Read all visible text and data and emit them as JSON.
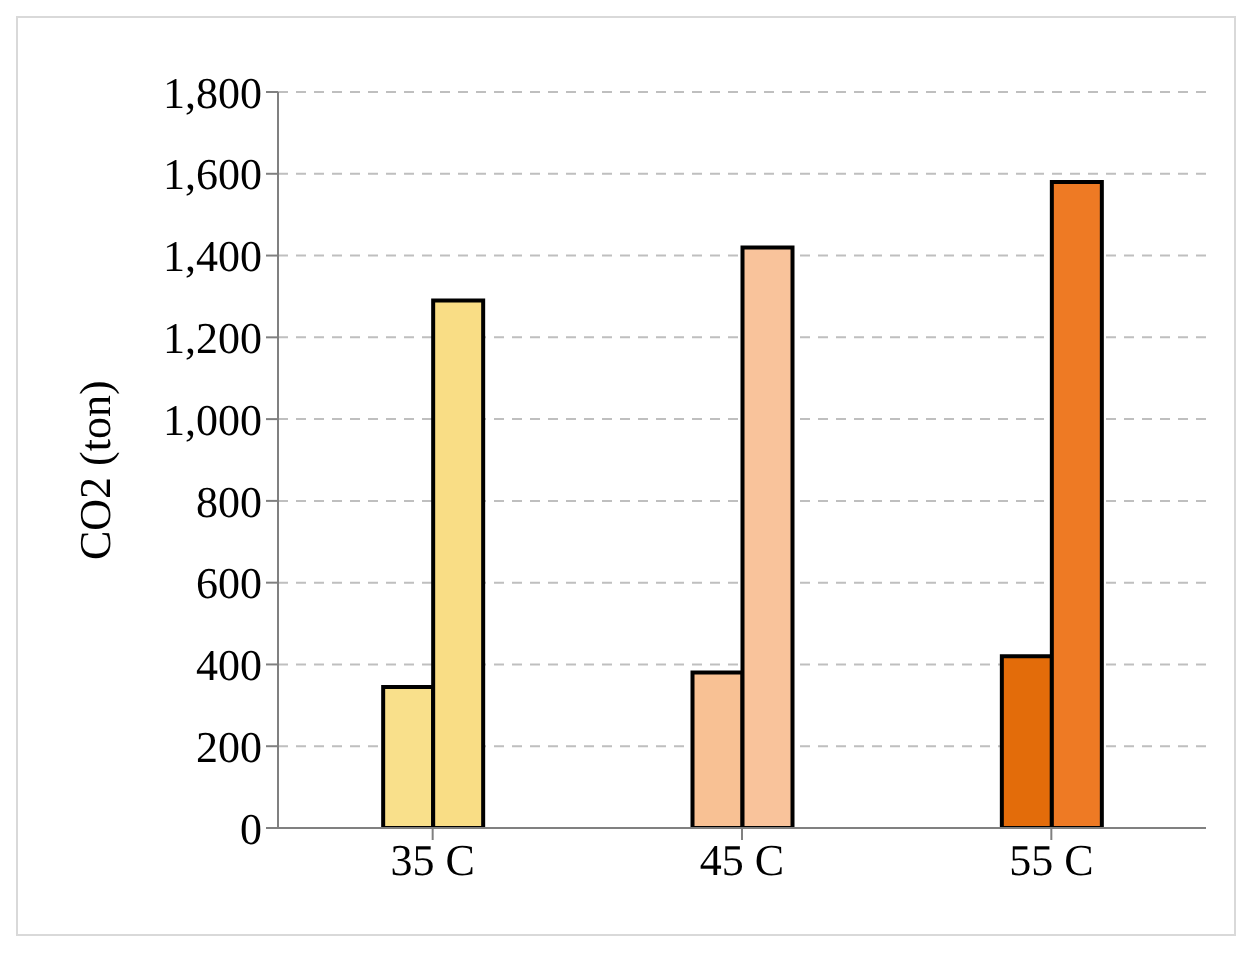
{
  "chart_data": {
    "type": "bar",
    "ylabel": "CO2 (ton)",
    "categories": [
      "35 C",
      "45 C",
      "55 C"
    ],
    "series": [
      {
        "colors": [
          "#f9e08b",
          "#f8c194",
          "#e36c0a"
        ],
        "values": [
          345,
          380,
          420
        ]
      },
      {
        "colors": [
          "#f9dd85",
          "#f9c39b",
          "#ee7a24"
        ],
        "values": [
          1290,
          1420,
          1580
        ]
      }
    ],
    "ylim": [
      0,
      1800
    ],
    "yticks": [
      0,
      200,
      400,
      600,
      800,
      {
        "value": 1000,
        "label": "1,000"
      },
      {
        "value": 1200,
        "label": "1,200"
      },
      {
        "value": 1400,
        "label": "1,400"
      },
      {
        "value": 1600,
        "label": "1,600"
      },
      {
        "value": 1800,
        "label": "1,800"
      }
    ],
    "grid": "y"
  }
}
